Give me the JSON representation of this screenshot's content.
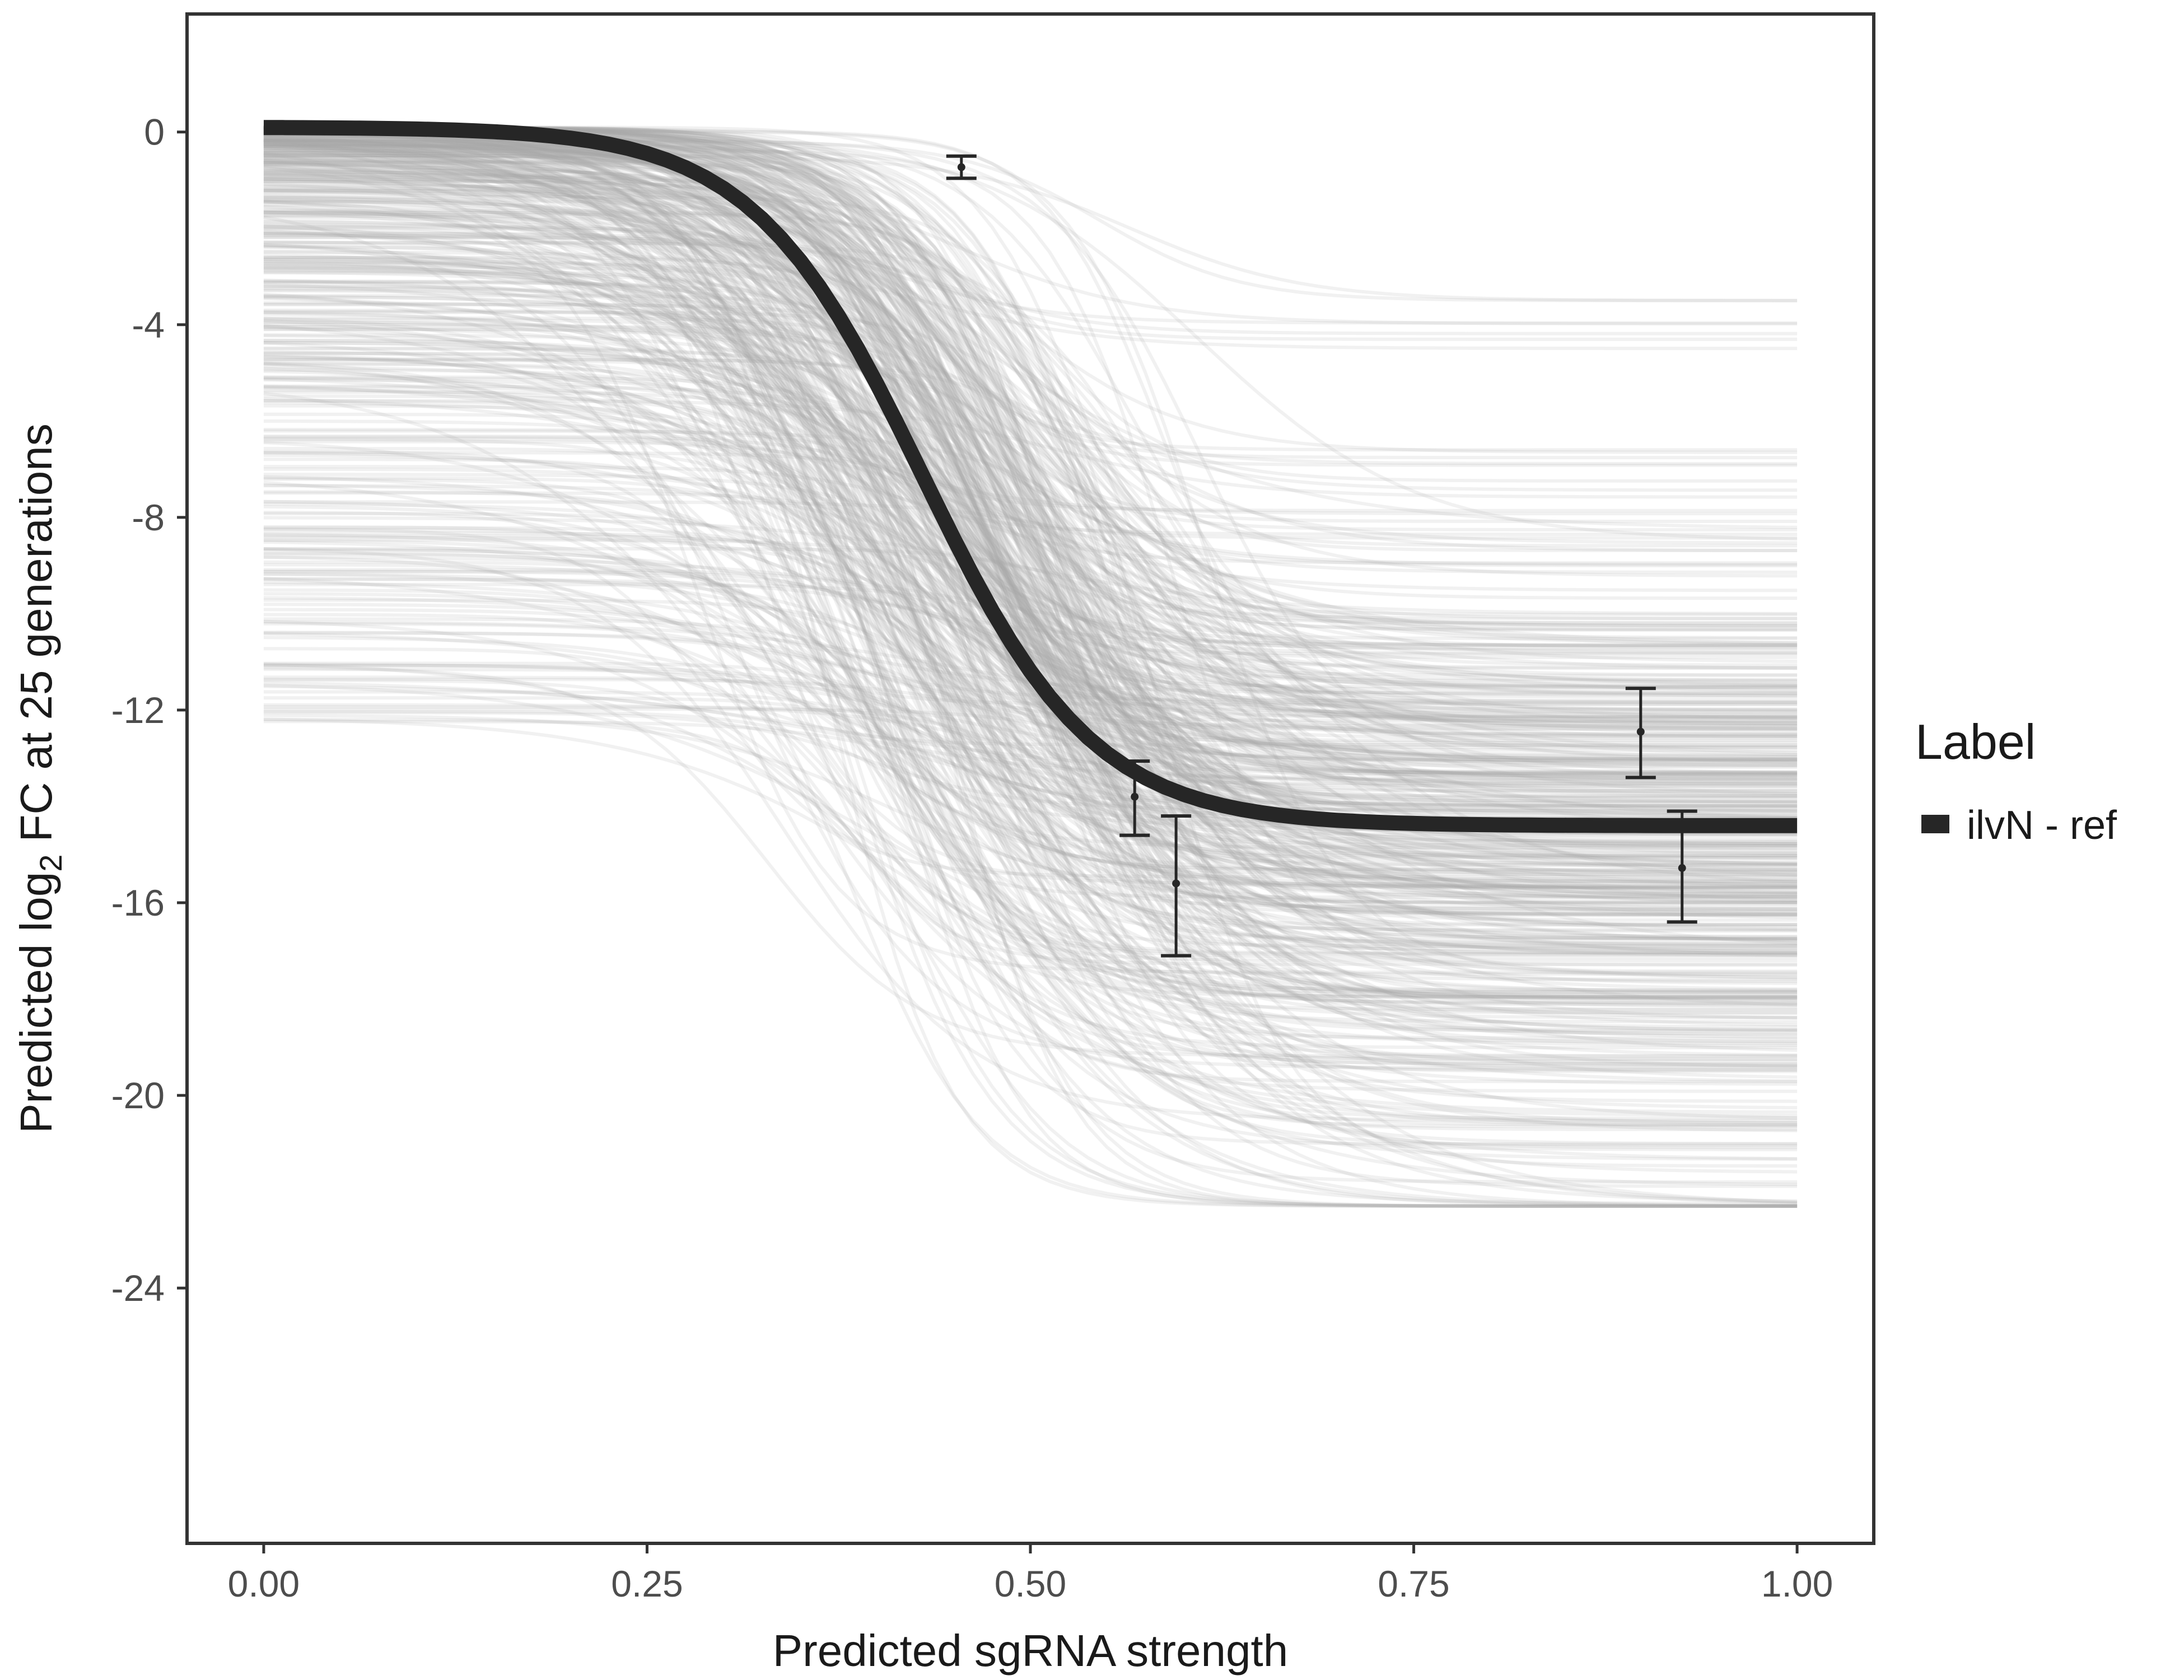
{
  "chart_data": {
    "type": "line",
    "title": "",
    "xlabel": "Predicted sgRNA strength",
    "ylabel": {
      "prefix": "Predicted  log",
      "subscript": "2",
      "suffix": " FC at 25 generations"
    },
    "xlim": [
      -0.05,
      1.05
    ],
    "ylim": [
      -29.3,
      2.45
    ],
    "x_ticks": [
      {
        "value": 0,
        "label": "0.00"
      },
      {
        "value": 0.25,
        "label": "0.25"
      },
      {
        "value": 0.5,
        "label": "0.50"
      },
      {
        "value": 0.75,
        "label": "0.75"
      },
      {
        "value": 1,
        "label": "1.00"
      }
    ],
    "y_ticks": [
      {
        "value": 0,
        "label": "0"
      },
      {
        "value": -4,
        "label": "-4"
      },
      {
        "value": -8,
        "label": "-8"
      },
      {
        "value": -12,
        "label": "-12"
      },
      {
        "value": -16,
        "label": "-16"
      },
      {
        "value": -20,
        "label": "-20"
      },
      {
        "value": -24,
        "label": "-24"
      }
    ],
    "grid": false,
    "legend": {
      "title": "Label",
      "placement": "right",
      "entries": [
        {
          "label": "ilvN - ref",
          "color": "#262626"
        }
      ]
    },
    "main_curve": {
      "name": "ilvN - ref",
      "model": "logistic",
      "upper": 0.1,
      "lower": -14.4,
      "midpoint": 0.43,
      "steepness": 18,
      "color": "#262626"
    },
    "posterior_draws": {
      "count": 500,
      "color": "#aaaaaa",
      "opacity": 0.16,
      "upper_range": [
        -12.3,
        0.1
      ],
      "lower_range": [
        -22.3,
        -3.5
      ],
      "midpoint_range": [
        0.25,
        0.62
      ],
      "steepness_range": [
        10,
        26
      ]
    },
    "observations": [
      {
        "x": 0.455,
        "y": -0.73,
        "ymin": -0.96,
        "ymax": -0.5
      },
      {
        "x": 0.568,
        "y": -13.8,
        "ymin": -14.6,
        "ymax": -13.06
      },
      {
        "x": 0.595,
        "y": -15.6,
        "ymin": -17.1,
        "ymax": -14.2
      },
      {
        "x": 0.898,
        "y": -12.45,
        "ymin": -13.4,
        "ymax": -11.55
      },
      {
        "x": 0.925,
        "y": -15.28,
        "ymin": -16.4,
        "ymax": -14.1
      }
    ]
  }
}
